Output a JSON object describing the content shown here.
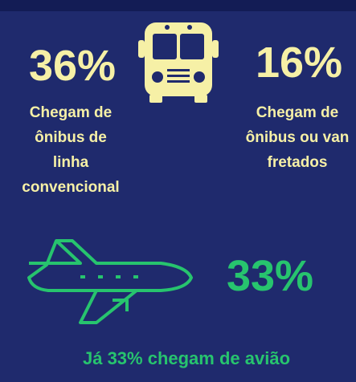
{
  "stats": [
    {
      "value": "36%",
      "lines": [
        "Chegam de",
        "ônibus de",
        "linha",
        "convencional"
      ]
    },
    {
      "value": "16%",
      "lines": [
        "Chegam de",
        "ônibus ou van",
        "fretados"
      ]
    },
    {
      "value": "33%"
    }
  ],
  "footer": "Já 33% chegam de avião"
}
